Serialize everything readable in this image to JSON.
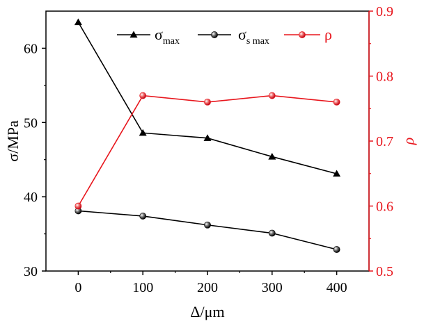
{
  "chart_data": {
    "type": "line",
    "x": [
      0,
      100,
      200,
      300,
      400
    ],
    "xlabel": "Δ/μm",
    "xlim": [
      -50,
      450
    ],
    "xticks": [
      "0",
      "100",
      "200",
      "300",
      "400"
    ],
    "y_left": {
      "label": "σ/MPa",
      "lim": [
        30,
        65
      ],
      "ticks": [
        "30",
        "40",
        "50",
        "60"
      ],
      "color": "#000000"
    },
    "y_right": {
      "label": "ρ",
      "lim": [
        0.5,
        0.9
      ],
      "ticks": [
        "0.5",
        "0.6",
        "0.7",
        "0.8",
        "0.9"
      ],
      "color": "#e8161d"
    },
    "series": [
      {
        "name": "σmax",
        "name_main": "σ",
        "name_sub": "max",
        "axis": "left",
        "marker": "triangle",
        "color": "#000000",
        "values": [
          63.5,
          48.6,
          47.9,
          45.4,
          43.1
        ]
      },
      {
        "name": "σs max",
        "name_main": "σ",
        "name_sub": "s max",
        "axis": "left",
        "marker": "sphere",
        "color": "#000000",
        "values": [
          38.1,
          37.4,
          36.2,
          35.1,
          32.9
        ]
      },
      {
        "name": "ρ",
        "name_main": "ρ",
        "name_sub": "",
        "axis": "right",
        "marker": "sphere",
        "color": "#e8161d",
        "values": [
          0.6,
          0.77,
          0.76,
          0.77,
          0.76
        ]
      }
    ],
    "legend_position": "top-right",
    "grid": false
  }
}
